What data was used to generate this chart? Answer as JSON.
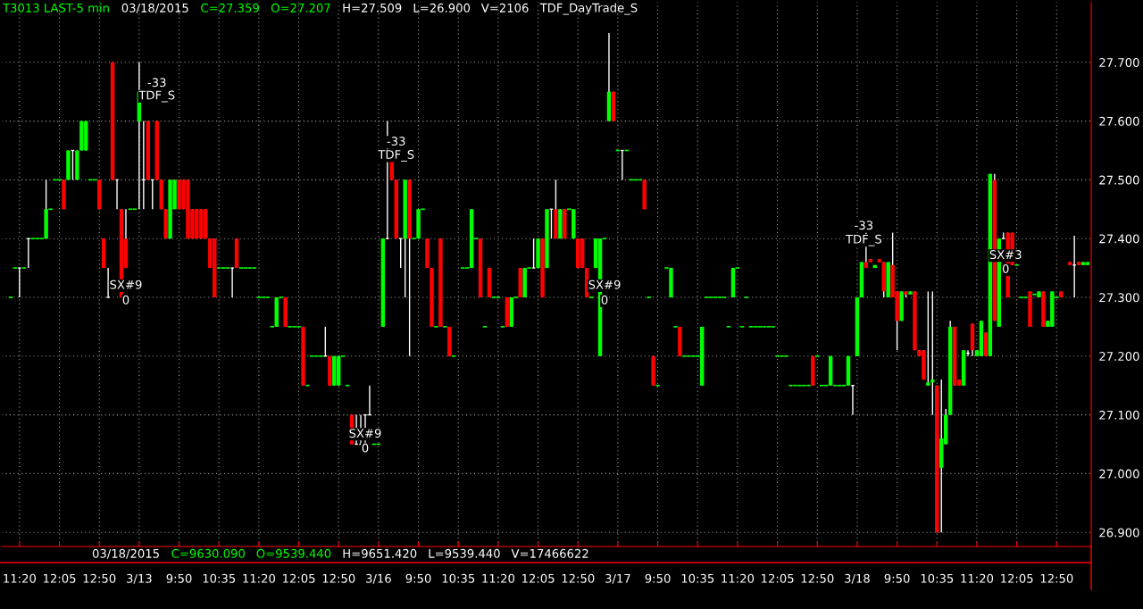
{
  "chart_data": {
    "type": "candlestick",
    "annotations": [
      "T3013 LAST-5 min",
      "03/18/2015",
      "C=27.359",
      "O=27.207",
      "H=27.509",
      "L=26.900",
      "V=2106",
      "TDF_DayTrade_S",
      "03/18/2015",
      "C=9630.090",
      "O=9539.440",
      "H=9651.420",
      "L=9539.440",
      "V=17466622",
      {
        "text": "-33",
        "y": 27.664
      },
      {
        "text": "TDF_S",
        "y": 27.642
      },
      {
        "text": "-33",
        "y": 27.564
      },
      {
        "text": "TDF_S",
        "y": 27.541
      },
      {
        "text": "-33",
        "y": 27.421
      },
      {
        "text": "TDF_S",
        "y": 27.397
      },
      {
        "text": "SX#9",
        "y": 27.32
      },
      {
        "text": "0",
        "y": 27.294
      },
      {
        "text": "SX#9",
        "y": 27.067
      },
      {
        "text": "0",
        "y": 27.042
      },
      {
        "text": "SX#9",
        "y": 27.32
      },
      {
        "text": "0",
        "y": 27.294
      },
      {
        "text": "SX#3",
        "y": 27.371
      },
      {
        "text": "0",
        "y": 27.347
      }
    ],
    "categories": [
      null,
      null,
      "11:20",
      null,
      null,
      null,
      null,
      null,
      null,
      null,
      null,
      "12:05",
      null,
      null,
      null,
      null,
      null,
      null,
      null,
      null,
      "12:50",
      null,
      null,
      null,
      null,
      null,
      null,
      null,
      null,
      "3/13",
      null,
      null,
      null,
      null,
      null,
      null,
      null,
      null,
      "9:50",
      null,
      null,
      null,
      null,
      null,
      null,
      null,
      null,
      "10:35",
      null,
      null,
      null,
      null,
      null,
      null,
      null,
      null,
      "11:20",
      null,
      null,
      null,
      null,
      null,
      null,
      null,
      null,
      "12:05",
      null,
      null,
      null,
      null,
      null,
      null,
      null,
      null,
      "12:50",
      null,
      null,
      null,
      null,
      null,
      null,
      null,
      null,
      "3/16",
      null,
      null,
      null,
      null,
      null,
      null,
      null,
      null,
      "9:50",
      null,
      null,
      null,
      null,
      null,
      null,
      null,
      null,
      "10:35",
      null,
      null,
      null,
      null,
      null,
      null,
      null,
      null,
      "11:20",
      null,
      null,
      null,
      null,
      null,
      null,
      null,
      null,
      "12:05",
      null,
      null,
      null,
      null,
      null,
      null,
      null,
      null,
      "12:50",
      null,
      null,
      null,
      null,
      null,
      null,
      null,
      null,
      "3/17",
      null,
      null,
      null,
      null,
      null,
      null,
      null,
      null,
      "9:50",
      null,
      null,
      null,
      null,
      null,
      null,
      null,
      null,
      "10:35",
      null,
      null,
      null,
      null,
      null,
      null,
      null,
      null,
      "11:20",
      null,
      null,
      null,
      null,
      null,
      null,
      null,
      null,
      "12:05",
      null,
      null,
      null,
      null,
      null,
      null,
      null,
      null,
      "12:50",
      null,
      null,
      null,
      null,
      null,
      null,
      null,
      null,
      "3/18",
      null,
      null,
      null,
      null,
      null,
      null,
      null,
      null,
      "9:50",
      null,
      null,
      null,
      null,
      null,
      null,
      null,
      null,
      "10:35",
      null,
      null,
      null,
      null,
      null,
      null,
      null,
      null,
      "11:20",
      null,
      null,
      null,
      null,
      null,
      null,
      null,
      null,
      "12:05",
      null,
      null,
      null,
      null,
      null,
      null,
      null,
      null,
      "12:50",
      null,
      null,
      null,
      null,
      null,
      null,
      null
    ],
    "ohlc": [
      [
        27.3,
        27.3,
        27.3,
        27.3
      ],
      [
        27.35,
        27.35,
        27.35,
        27.35
      ],
      [
        27.35,
        27.35,
        27.3,
        27.35
      ],
      [
        27.35,
        27.35,
        27.35,
        27.35
      ],
      [
        27.4,
        27.4,
        27.35,
        27.4
      ],
      [
        27.4,
        27.4,
        27.4,
        27.4
      ],
      [
        27.4,
        27.4,
        27.4,
        27.4
      ],
      [
        27.4,
        27.4,
        27.4,
        27.4
      ],
      [
        27.4,
        27.5,
        27.4,
        27.45
      ],
      [
        27.45,
        27.45,
        27.45,
        27.45
      ],
      [
        27.5,
        27.5,
        27.5,
        27.5
      ],
      [
        27.5,
        27.5,
        27.5,
        27.5
      ],
      [
        27.5,
        27.5,
        27.45,
        27.45
      ],
      [
        27.5,
        27.55,
        27.5,
        27.55
      ],
      [
        27.55,
        27.55,
        27.5,
        27.55
      ],
      [
        27.5,
        27.55,
        27.5,
        27.55
      ],
      [
        27.55,
        27.6,
        27.55,
        27.6
      ],
      [
        27.55,
        27.6,
        27.55,
        27.6
      ],
      [
        27.5,
        27.5,
        27.5,
        27.5
      ],
      [
        27.5,
        27.5,
        27.5,
        27.5
      ],
      [
        27.5,
        27.5,
        27.45,
        27.45
      ],
      [
        27.4,
        27.4,
        27.35,
        27.35
      ],
      [
        27.3,
        27.35,
        27.3,
        27.3
      ],
      [
        27.7,
        27.7,
        27.5,
        27.5
      ],
      [
        27.5,
        27.5,
        27.45,
        27.5
      ],
      [
        27.45,
        27.45,
        27.3,
        27.3
      ],
      [
        27.4,
        27.45,
        27.35,
        27.35
      ],
      [
        27.45,
        27.45,
        27.45,
        27.45
      ],
      [
        27.45,
        27.45,
        27.45,
        27.45
      ],
      [
        27.6,
        27.7,
        27.45,
        27.65
      ],
      [
        27.5,
        27.6,
        27.45,
        27.5
      ],
      [
        27.6,
        27.6,
        27.5,
        27.5
      ],
      [
        27.5,
        27.5,
        27.45,
        27.5
      ],
      [
        27.6,
        27.6,
        27.5,
        27.5
      ],
      [
        27.5,
        27.5,
        27.45,
        27.45
      ],
      [
        27.45,
        27.45,
        27.4,
        27.4
      ],
      [
        27.4,
        27.5,
        27.4,
        27.5
      ],
      [
        27.45,
        27.5,
        27.45,
        27.5
      ],
      [
        27.5,
        27.5,
        27.45,
        27.45
      ],
      [
        27.5,
        27.5,
        27.45,
        27.45
      ],
      [
        27.5,
        27.5,
        27.4,
        27.4
      ],
      [
        27.45,
        27.45,
        27.4,
        27.4
      ],
      [
        27.45,
        27.45,
        27.4,
        27.4
      ],
      [
        27.45,
        27.45,
        27.4,
        27.4
      ],
      [
        27.45,
        27.45,
        27.4,
        27.4
      ],
      [
        27.4,
        27.4,
        27.35,
        27.35
      ],
      [
        27.4,
        27.4,
        27.3,
        27.3
      ],
      [
        27.35,
        27.35,
        27.35,
        27.35
      ],
      [
        27.35,
        27.35,
        27.35,
        27.35
      ],
      [
        27.35,
        27.35,
        27.35,
        27.35
      ],
      [
        27.35,
        27.35,
        27.3,
        27.35
      ],
      [
        27.4,
        27.4,
        27.35,
        27.35
      ],
      [
        27.35,
        27.35,
        27.35,
        27.35
      ],
      [
        27.35,
        27.35,
        27.35,
        27.35
      ],
      [
        27.35,
        27.35,
        27.35,
        27.35
      ],
      [
        27.35,
        27.35,
        27.35,
        27.35
      ],
      [
        27.3,
        27.3,
        27.3,
        27.3
      ],
      [
        27.3,
        27.3,
        27.3,
        27.3
      ],
      [
        27.3,
        27.3,
        27.3,
        27.3
      ],
      [
        27.25,
        27.25,
        27.25,
        27.25
      ],
      [
        27.25,
        27.3,
        27.25,
        27.3
      ],
      [
        27.3,
        27.3,
        27.3,
        27.3
      ],
      [
        27.3,
        27.3,
        27.25,
        27.25
      ],
      [
        27.25,
        27.25,
        27.25,
        27.25
      ],
      [
        27.25,
        27.25,
        27.25,
        27.25
      ],
      [
        27.25,
        27.25,
        27.25,
        27.25
      ],
      [
        27.25,
        27.25,
        27.15,
        27.15
      ],
      [
        27.15,
        27.15,
        27.15,
        27.15
      ],
      [
        27.2,
        27.2,
        27.2,
        27.2
      ],
      [
        27.2,
        27.2,
        27.2,
        27.2
      ],
      [
        27.2,
        27.2,
        27.2,
        27.2
      ],
      [
        27.2,
        27.25,
        27.2,
        27.2
      ],
      [
        27.2,
        27.2,
        27.15,
        27.15
      ],
      [
        27.15,
        27.2,
        27.15,
        27.2
      ],
      [
        27.15,
        27.2,
        27.15,
        27.2
      ],
      [
        27.2,
        27.2,
        27.2,
        27.2
      ],
      [
        27.15,
        27.15,
        27.15,
        27.15
      ],
      [
        27.1,
        27.1,
        27.05,
        27.05
      ],
      [
        27.05,
        27.1,
        27.05,
        27.05
      ],
      [
        27.05,
        27.1,
        27.05,
        27.05
      ],
      [
        27.1,
        27.1,
        27.05,
        27.1
      ],
      [
        27.1,
        27.15,
        27.1,
        27.1
      ],
      [
        27.05,
        27.05,
        27.05,
        27.05
      ],
      [
        27.05,
        27.05,
        27.05,
        27.05
      ],
      [
        27.25,
        27.4,
        27.25,
        27.4
      ],
      [
        27.4,
        27.6,
        27.4,
        27.4
      ],
      [
        27.55,
        27.55,
        27.5,
        27.5
      ],
      [
        27.5,
        27.5,
        27.4,
        27.4
      ],
      [
        27.4,
        27.4,
        27.35,
        27.4
      ],
      [
        27.4,
        27.5,
        27.3,
        27.5
      ],
      [
        27.5,
        27.5,
        27.2,
        27.4
      ],
      [
        27.4,
        27.4,
        27.4,
        27.4
      ],
      [
        27.4,
        27.45,
        27.4,
        27.45
      ],
      [
        27.45,
        27.45,
        27.45,
        27.45
      ],
      [
        27.4,
        27.4,
        27.35,
        27.35
      ],
      [
        27.35,
        27.35,
        27.25,
        27.25
      ],
      [
        27.25,
        27.25,
        27.25,
        27.25
      ],
      [
        27.4,
        27.4,
        27.25,
        27.25
      ],
      [
        27.25,
        27.25,
        27.25,
        27.25
      ],
      [
        27.25,
        27.25,
        27.2,
        27.2
      ],
      [
        27.2,
        27.2,
        27.2,
        27.2
      ],
      null,
      [
        27.35,
        27.35,
        27.35,
        27.35
      ],
      [
        27.35,
        27.35,
        27.35,
        27.35
      ],
      [
        27.35,
        27.45,
        27.35,
        27.45
      ],
      [
        27.4,
        27.4,
        27.4,
        27.4
      ],
      [
        27.4,
        27.4,
        27.3,
        27.3
      ],
      [
        27.25,
        27.25,
        27.25,
        27.25
      ],
      [
        27.35,
        27.35,
        27.3,
        27.3
      ],
      [
        27.3,
        27.3,
        27.3,
        27.3
      ],
      [
        27.3,
        27.3,
        27.3,
        27.3
      ],
      [
        27.25,
        27.25,
        27.25,
        27.25
      ],
      [
        27.3,
        27.3,
        27.25,
        27.25
      ],
      [
        27.25,
        27.3,
        27.25,
        27.3
      ],
      [
        27.3,
        27.3,
        27.3,
        27.3
      ],
      [
        27.35,
        27.35,
        27.3,
        27.3
      ],
      [
        27.3,
        27.35,
        27.3,
        27.35
      ],
      [
        27.35,
        27.35,
        27.35,
        27.35
      ],
      [
        27.35,
        27.4,
        27.35,
        27.35
      ],
      [
        27.35,
        27.4,
        27.35,
        27.4
      ],
      [
        27.4,
        27.4,
        27.3,
        27.3
      ],
      [
        27.35,
        27.45,
        27.35,
        27.45
      ],
      [
        27.45,
        27.45,
        27.4,
        27.45
      ],
      [
        27.45,
        27.5,
        27.4,
        27.4
      ],
      [
        27.4,
        27.45,
        27.4,
        27.45
      ],
      [
        27.45,
        27.45,
        27.4,
        27.4
      ],
      [
        27.45,
        27.45,
        27.45,
        27.45
      ],
      [
        27.4,
        27.45,
        27.4,
        27.45
      ],
      [
        27.4,
        27.4,
        27.35,
        27.35
      ],
      [
        27.4,
        27.4,
        27.35,
        27.35
      ],
      [
        27.35,
        27.35,
        27.3,
        27.3
      ],
      [
        27.3,
        27.3,
        27.3,
        27.3
      ],
      [
        27.35,
        27.4,
        27.35,
        27.4
      ],
      [
        27.2,
        27.4,
        27.2,
        27.4
      ],
      [
        27.4,
        27.4,
        27.4,
        27.4
      ],
      [
        27.6,
        27.75,
        27.6,
        27.65
      ],
      [
        27.65,
        27.65,
        27.6,
        27.6
      ],
      [
        27.55,
        27.55,
        27.55,
        27.55
      ],
      [
        27.55,
        27.55,
        27.5,
        27.55
      ],
      [
        27.55,
        27.55,
        27.55,
        27.55
      ],
      [
        27.5,
        27.5,
        27.5,
        27.5
      ],
      [
        27.5,
        27.5,
        27.5,
        27.5
      ],
      [
        27.5,
        27.5,
        27.5,
        27.5
      ],
      [
        27.5,
        27.5,
        27.45,
        27.45
      ],
      [
        27.3,
        27.3,
        27.3,
        27.3
      ],
      [
        27.2,
        27.2,
        27.15,
        27.15
      ],
      [
        27.15,
        27.15,
        27.15,
        27.15
      ],
      null,
      [
        27.35,
        27.35,
        27.35,
        27.35
      ],
      [
        27.3,
        27.35,
        27.3,
        27.35
      ],
      [
        27.25,
        27.25,
        27.25,
        27.25
      ],
      [
        27.25,
        27.25,
        27.2,
        27.2
      ],
      [
        27.2,
        27.2,
        27.2,
        27.2
      ],
      [
        27.2,
        27.2,
        27.2,
        27.2
      ],
      [
        27.2,
        27.2,
        27.2,
        27.2
      ],
      [
        27.2,
        27.2,
        27.2,
        27.2
      ],
      [
        27.15,
        27.25,
        27.15,
        27.25
      ],
      [
        27.3,
        27.3,
        27.3,
        27.3
      ],
      [
        27.3,
        27.3,
        27.3,
        27.3
      ],
      [
        27.3,
        27.3,
        27.3,
        27.3
      ],
      [
        27.3,
        27.3,
        27.3,
        27.3
      ],
      [
        27.3,
        27.3,
        27.3,
        27.3
      ],
      [
        27.25,
        27.25,
        27.25,
        27.25
      ],
      [
        27.3,
        27.35,
        27.3,
        27.35
      ],
      [
        27.35,
        27.35,
        27.35,
        27.35
      ],
      [
        27.25,
        27.25,
        27.25,
        27.25
      ],
      [
        27.3,
        27.3,
        27.3,
        27.3
      ],
      [
        27.25,
        27.25,
        27.25,
        27.25
      ],
      [
        27.25,
        27.25,
        27.25,
        27.25
      ],
      [
        27.25,
        27.25,
        27.25,
        27.25
      ],
      [
        27.25,
        27.25,
        27.25,
        27.25
      ],
      [
        27.25,
        27.25,
        27.25,
        27.25
      ],
      [
        27.25,
        27.25,
        27.25,
        27.25
      ],
      [
        27.2,
        27.2,
        27.2,
        27.2
      ],
      [
        27.2,
        27.2,
        27.2,
        27.2
      ],
      [
        27.2,
        27.2,
        27.2,
        27.2
      ],
      [
        27.15,
        27.15,
        27.15,
        27.15
      ],
      [
        27.15,
        27.15,
        27.15,
        27.15
      ],
      [
        27.15,
        27.15,
        27.15,
        27.15
      ],
      [
        27.15,
        27.15,
        27.15,
        27.15
      ],
      [
        27.15,
        27.15,
        27.15,
        27.15
      ],
      [
        27.2,
        27.2,
        27.15,
        27.15
      ],
      [
        27.2,
        27.2,
        27.2,
        27.2
      ],
      [
        27.15,
        27.15,
        27.15,
        27.15
      ],
      [
        27.15,
        27.15,
        27.15,
        27.15
      ],
      [
        27.15,
        27.2,
        27.15,
        27.2
      ],
      [
        27.15,
        27.15,
        27.15,
        27.15
      ],
      [
        27.15,
        27.15,
        27.15,
        27.15
      ],
      [
        27.15,
        27.15,
        27.15,
        27.15
      ],
      [
        27.15,
        27.2,
        27.15,
        27.2
      ],
      [
        27.15,
        27.15,
        27.1,
        27.15
      ],
      [
        27.2,
        27.3,
        27.2,
        27.3
      ],
      [
        27.3,
        27.36,
        27.3,
        27.36
      ],
      [
        27.36,
        27.41,
        27.35,
        27.35
      ],
      [
        27.365,
        27.365,
        27.36,
        27.36
      ],
      [
        27.35,
        27.355,
        27.35,
        27.355
      ],
      [
        27.365,
        27.365,
        27.36,
        27.36
      ],
      [
        27.36,
        27.36,
        27.3,
        27.31
      ],
      [
        27.3,
        27.36,
        27.3,
        27.36
      ],
      [
        27.355,
        27.41,
        27.3,
        27.3
      ],
      [
        27.31,
        27.31,
        27.21,
        27.26
      ],
      [
        27.26,
        27.31,
        27.26,
        27.31
      ],
      [
        27.31,
        27.31,
        27.3,
        27.305
      ],
      [
        27.305,
        27.31,
        27.305,
        27.31
      ],
      [
        27.31,
        27.31,
        27.21,
        27.21
      ],
      [
        27.21,
        27.21,
        27.2,
        27.2
      ],
      [
        27.21,
        27.21,
        27.16,
        27.16
      ],
      [
        27.15,
        27.31,
        27.15,
        27.155
      ],
      [
        27.155,
        27.31,
        27.1,
        27.16
      ],
      [
        27.15,
        27.15,
        26.9,
        26.9
      ],
      [
        27.01,
        27.16,
        26.9,
        27.06
      ],
      [
        27.05,
        27.11,
        27.05,
        27.1
      ],
      [
        27.1,
        27.26,
        27.1,
        27.25
      ],
      [
        27.25,
        27.25,
        27.15,
        27.15
      ],
      [
        27.16,
        27.16,
        27.15,
        27.15
      ],
      [
        27.15,
        27.21,
        27.15,
        27.21
      ],
      [
        27.205,
        27.21,
        27.2,
        27.205
      ],
      [
        27.255,
        27.255,
        27.2,
        27.21
      ],
      [
        27.2,
        27.21,
        27.2,
        27.21
      ],
      [
        27.2,
        27.26,
        27.2,
        27.26
      ],
      [
        27.24,
        27.24,
        27.2,
        27.2
      ],
      [
        27.2,
        27.51,
        27.2,
        27.51
      ],
      [
        27.5,
        27.51,
        27.26,
        27.26
      ],
      [
        27.25,
        27.4,
        27.25,
        27.4
      ],
      [
        27.4,
        27.41,
        27.4,
        27.4
      ],
      [
        27.41,
        27.41,
        27.3,
        27.3
      ],
      [
        27.41,
        27.41,
        27.355,
        27.355
      ],
      [
        27.355,
        27.355,
        27.355,
        27.355
      ],
      [
        27.3,
        27.3,
        27.3,
        27.3
      ],
      [
        27.3,
        27.3,
        27.3,
        27.3
      ],
      [
        27.31,
        27.31,
        27.25,
        27.25
      ],
      [
        27.305,
        27.305,
        27.305,
        27.305
      ],
      [
        27.3,
        27.31,
        27.3,
        27.31
      ],
      [
        27.31,
        27.31,
        27.25,
        27.25
      ],
      [
        27.25,
        27.26,
        27.25,
        27.26
      ],
      [
        27.25,
        27.31,
        27.25,
        27.31
      ],
      [
        27.3,
        27.3,
        27.3,
        27.3
      ],
      [
        27.31,
        27.31,
        27.3,
        27.3
      ],
      null,
      [
        27.36,
        27.36,
        27.355,
        27.355
      ],
      [
        27.355,
        27.405,
        27.3,
        27.355
      ],
      [
        27.36,
        27.36,
        27.355,
        27.355
      ],
      [
        27.355,
        27.36,
        27.355,
        27.36
      ],
      [
        27.355,
        27.36,
        27.355,
        27.36
      ]
    ],
    "ylim": [
      26.876,
      27.803
    ],
    "yticks": [
      {
        "value": 26.9,
        "label": "26.900"
      },
      {
        "value": 27.0,
        "label": "27.000"
      },
      {
        "value": 27.1,
        "label": "27.100"
      },
      {
        "value": 27.2,
        "label": "27.200"
      },
      {
        "value": 27.3,
        "label": "27.300"
      },
      {
        "value": 27.4,
        "label": "27.400"
      },
      {
        "value": 27.5,
        "label": "27.500"
      },
      {
        "value": 27.6,
        "label": "27.600"
      },
      {
        "value": 27.7,
        "label": "27.700"
      }
    ],
    "grid": true
  }
}
